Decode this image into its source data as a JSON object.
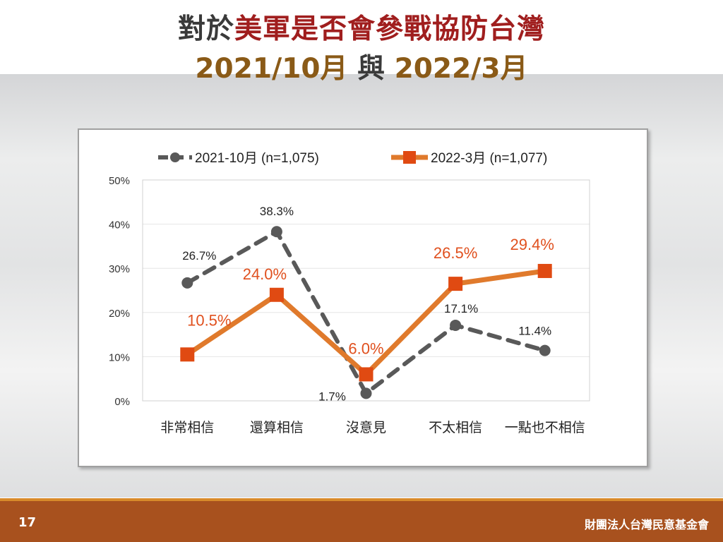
{
  "title": {
    "prefix": "對於",
    "highlight": "美軍是否會參戰協防台灣",
    "date1": "2021/10月",
    "connector": " 與 ",
    "date2": "2022/3月"
  },
  "footer": {
    "page_number": "17",
    "organization": "財團法人台灣民意基金會"
  },
  "colors": {
    "series_2021": "#595959",
    "series_2022": "#e07a2c",
    "series_2022_marker": "#e04a12",
    "label_2022": "#e0501e"
  },
  "chart_data": {
    "type": "line",
    "categories": [
      "非常相信",
      "還算相信",
      "沒意見",
      "不太相信",
      "一點也不相信"
    ],
    "series": [
      {
        "name": "2021-10月  (n=1,075)",
        "values": [
          26.7,
          38.3,
          1.7,
          17.1,
          11.4
        ],
        "labels": [
          "26.7%",
          "38.3%",
          "1.7%",
          "17.1%",
          "11.4%"
        ],
        "style": "dashed",
        "marker": "circle"
      },
      {
        "name": "2022-3月  (n=1,077)",
        "values": [
          10.5,
          24.0,
          6.0,
          26.5,
          29.4
        ],
        "labels": [
          "10.5%",
          "24.0%",
          "6.0%",
          "26.5%",
          "29.4%"
        ],
        "style": "solid",
        "marker": "square"
      }
    ],
    "y_ticks": [
      "0%",
      "10%",
      "20%",
      "30%",
      "40%",
      "50%"
    ],
    "ylim": [
      0,
      50
    ],
    "grid": true,
    "legend": "top"
  }
}
